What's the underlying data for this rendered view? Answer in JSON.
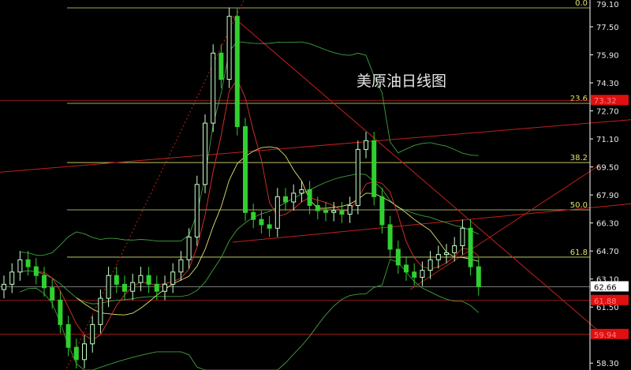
{
  "chart_data": {
    "type": "candlestick",
    "title": "美原油日线图",
    "ylim": [
      57.9,
      79.2
    ],
    "y_ticks": [
      "79.10",
      "77.50",
      "75.90",
      "74.30",
      "72.70",
      "71.10",
      "69.50",
      "67.90",
      "66.30",
      "64.70",
      "63.10",
      "61.50",
      "58.30"
    ],
    "closes": [
      62.8,
      63.5,
      64.2,
      63.8,
      63.3,
      62.6,
      61.9,
      60.5,
      59.2,
      58.5,
      59.4,
      60.5,
      62.0,
      63.3,
      62.8,
      62.4,
      62.9,
      63.3,
      62.8,
      62.4,
      62.8,
      63.5,
      64.2,
      65.5,
      68.5,
      72.0,
      76.0,
      74.5,
      78.1,
      71.8,
      66.9,
      66.5,
      66.2,
      66.0,
      67.8,
      67.5,
      68.0,
      68.2,
      67.3,
      67.0,
      66.9,
      67.0,
      66.8,
      67.3,
      70.5,
      71.0,
      67.8,
      66.2,
      64.8,
      63.9,
      63.5,
      63.2,
      63.6,
      64.2,
      64.5,
      64.6,
      65.0,
      66.0,
      63.8,
      62.66
    ],
    "fib_levels": [
      {
        "label": "0.0",
        "price": 78.58
      },
      {
        "label": "23.6",
        "price": 73.13
      },
      {
        "label": "38.2",
        "price": 69.75
      },
      {
        "label": "50.0",
        "price": 67.05
      },
      {
        "label": "61.8",
        "price": 64.35
      }
    ],
    "price_labels": [
      {
        "text": "73.32",
        "price": 73.3,
        "color": "#e01010"
      },
      {
        "text": "61.88",
        "price": 61.88,
        "color": "#e01010"
      },
      {
        "text": "59.94",
        "price": 59.94,
        "color": "#e01010"
      },
      {
        "text": "62.66",
        "price": 62.66,
        "color": "#ffffff"
      }
    ],
    "trend_lines": [
      {
        "from": [
          28.4,
          78.1
        ],
        "to": [
          74,
          60.1
        ],
        "style": "solid"
      },
      {
        "from": [
          -0.5,
          69.2
        ],
        "to": [
          78,
          72.2
        ],
        "style": "solid"
      },
      {
        "from": [
          28.4,
          65.2
        ],
        "to": [
          78,
          67.4
        ],
        "style": "solid"
      },
      {
        "from": [
          50.5,
          62.5
        ],
        "to": [
          74,
          69.6
        ],
        "style": "solid"
      },
      {
        "from": [
          7.8,
          58.0
        ],
        "to": [
          29.9,
          79.1
        ],
        "style": "dotted"
      }
    ],
    "indicators": {
      "ma_fast": 5,
      "ma_slow": 10,
      "bollinger": 20
    },
    "colors": {
      "up": "#c8ffc8",
      "down": "#30d030",
      "fib": "#e0e070",
      "trend": "#c02020",
      "ma_fast": "#e03030",
      "ma_slow": "#e0e070",
      "bollinger": "#40a040",
      "axis": "#ffffff"
    }
  }
}
